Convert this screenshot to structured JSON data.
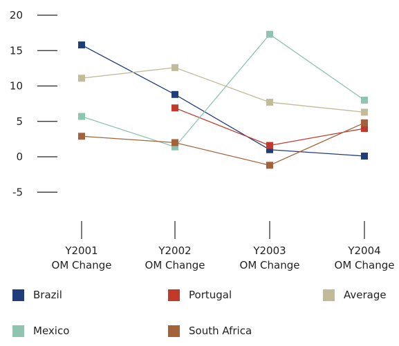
{
  "chart_data": {
    "type": "line",
    "title": "",
    "xlabel": "",
    "ylabel": "",
    "ylim": [
      -5,
      20
    ],
    "yticks": [
      20,
      15,
      10,
      5,
      0,
      -5
    ],
    "yticks_labels": [
      "20",
      "15",
      "10",
      "5",
      "0",
      "-5"
    ],
    "categories": [
      [
        "Y2001",
        "OM Change"
      ],
      [
        "Y2002",
        "OM Change"
      ],
      [
        "Y2003",
        "OM Change"
      ],
      [
        "Y2004",
        "OM Change"
      ]
    ],
    "grid": false,
    "legend_position": "bottom",
    "series": [
      {
        "name": "Brazil",
        "color": "#1f3d7a",
        "values": [
          15.8,
          8.8,
          1.0,
          0.1
        ]
      },
      {
        "name": "Portugal",
        "color": "#c0392b",
        "values": [
          null,
          6.9,
          1.6,
          4.0
        ]
      },
      {
        "name": "Average",
        "color": "#c2bb98",
        "values": [
          11.1,
          12.6,
          7.7,
          6.3
        ]
      },
      {
        "name": "Mexico",
        "color": "#8fc4b0",
        "values": [
          5.7,
          1.4,
          17.3,
          8.0
        ]
      },
      {
        "name": "South Africa",
        "color": "#a4623a",
        "values": [
          2.9,
          2.0,
          -1.2,
          4.8
        ]
      }
    ]
  }
}
